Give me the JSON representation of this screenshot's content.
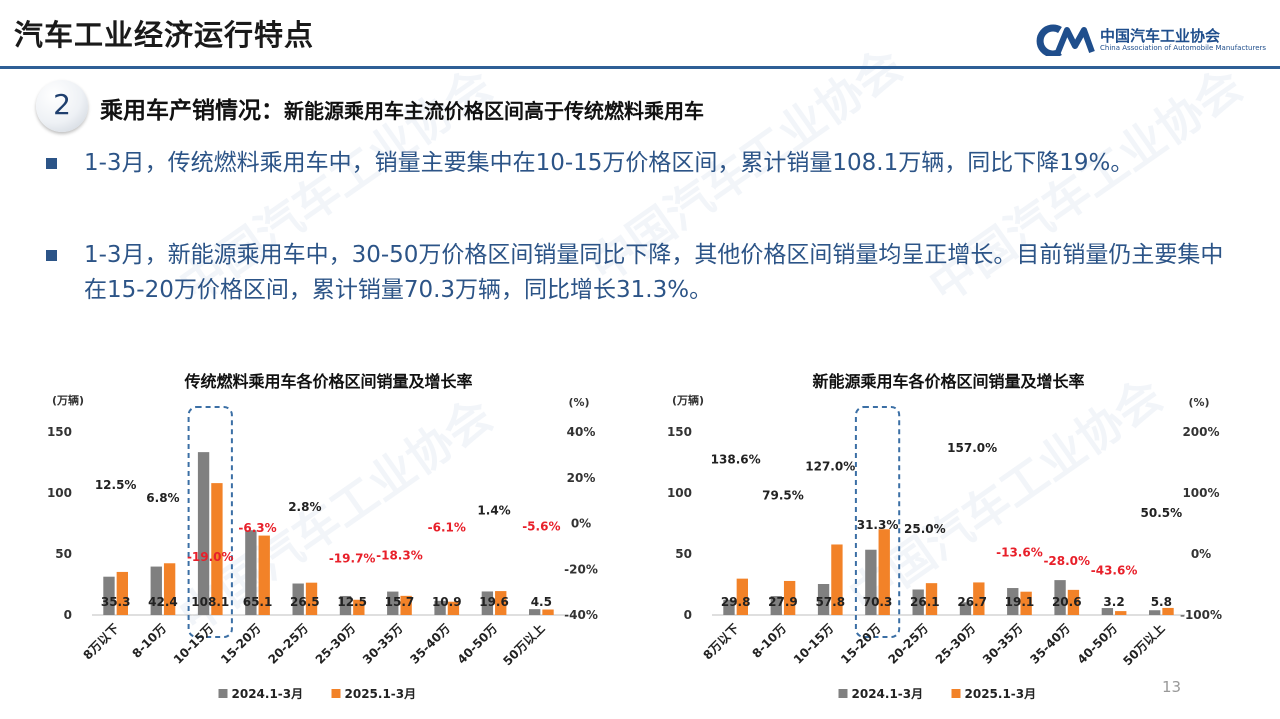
{
  "header": {
    "page_title": "汽车工业经济运行特点",
    "logo_cn": "中国汽车工业协会",
    "logo_en": "China Association of Automobile Manufacturers"
  },
  "section": {
    "number": "2",
    "title": "乘用车产销情况：",
    "subtitle": "新能源乘用车主流价格区间高于传统燃料乘用车"
  },
  "bullets": [
    "1-3月，传统燃料乘用车中，销量主要集中在10-15万价格区间，累计销量108.1万辆，同比下降19%。",
    "1-3月，新能源乘用车中，30-50万价格区间销量同比下降，其他价格区间销量均呈正增长。目前销量仍主要集中在15-20万价格区间，累计销量70.3万辆，同比增长31.3%。"
  ],
  "page_number": "13",
  "colors": {
    "accent": "#2e5f96",
    "bar_2024": "#808080",
    "bar_2025": "#f28228",
    "negative": "#e8202a",
    "highlight_box": "#3b6fa5"
  },
  "chart_data": [
    {
      "type": "bar",
      "title": "传统燃料乘用车各价格区间销量及增长率",
      "ylabel": "(万辆)",
      "y2label": "(%)",
      "categories": [
        "8万以下",
        "8-10万",
        "10-15万",
        "15-20万",
        "20-25万",
        "25-30万",
        "30-35万",
        "35-40万",
        "40-50万",
        "50万以上"
      ],
      "series": [
        {
          "name": "2024.1-3月",
          "values": [
            31.4,
            39.7,
            133.5,
            69.5,
            25.8,
            15.6,
            19.2,
            11.6,
            19.3,
            4.8
          ]
        },
        {
          "name": "2025.1-3月",
          "values": [
            35.3,
            42.4,
            108.1,
            65.1,
            26.5,
            12.5,
            15.7,
            10.9,
            19.6,
            4.5
          ]
        }
      ],
      "value_labels": [
        "35.3",
        "42.4",
        "108.1",
        "65.1",
        "26.5",
        "12.5",
        "15.7",
        "10.9",
        "19.6",
        "4.5"
      ],
      "growth_labels": [
        "12.5%",
        "6.8%",
        "-19.0%",
        "-6.3%",
        "2.8%",
        "-19.7%",
        "-18.3%",
        "-6.1%",
        "1.4%",
        "-5.6%"
      ],
      "growth_values": [
        12.5,
        6.8,
        -19.0,
        -6.3,
        2.8,
        -19.7,
        -18.3,
        -6.1,
        1.4,
        -5.6
      ],
      "ylim": [
        0,
        150
      ],
      "yticks": [
        "0",
        "50",
        "100",
        "150"
      ],
      "y2lim": [
        -40,
        40
      ],
      "y2ticks": [
        "-40%",
        "-20%",
        "0%",
        "20%",
        "40%"
      ],
      "highlight_category": 2,
      "legend_position": "bottom"
    },
    {
      "type": "bar",
      "title": "新能源乘用车各价格区间销量及增长率",
      "ylabel": "(万辆)",
      "y2label": "(%)",
      "categories": [
        "8万以下",
        "8-10万",
        "10-15万",
        "15-20万",
        "20-25万",
        "25-30万",
        "30-35万",
        "35-40万",
        "40-50万",
        "50万以上"
      ],
      "series": [
        {
          "name": "2024.1-3月",
          "values": [
            12.5,
            15.5,
            25.4,
            53.5,
            20.9,
            10.4,
            22.1,
            28.6,
            5.7,
            3.9
          ]
        },
        {
          "name": "2025.1-3月",
          "values": [
            29.8,
            27.9,
            57.8,
            70.3,
            26.1,
            26.7,
            19.1,
            20.6,
            3.2,
            5.8
          ]
        }
      ],
      "value_labels": [
        "29.8",
        "27.9",
        "57.8",
        "70.3",
        "26.1",
        "26.7",
        "19.1",
        "20.6",
        "3.2",
        "5.8"
      ],
      "growth_labels": [
        "138.6%",
        "79.5%",
        "127.0%",
        "31.3%",
        "25.0%",
        "157.0%",
        "-13.6%",
        "-28.0%",
        "-43.6%",
        "50.5%"
      ],
      "growth_values": [
        138.6,
        79.5,
        127.0,
        31.3,
        25.0,
        157.0,
        -13.6,
        -28.0,
        -43.6,
        50.5
      ],
      "ylim": [
        0,
        150
      ],
      "yticks": [
        "0",
        "50",
        "100",
        "150"
      ],
      "y2lim": [
        -100,
        200
      ],
      "y2ticks": [
        "-100%",
        "0%",
        "100%",
        "200%"
      ],
      "highlight_category": 3,
      "legend_position": "bottom"
    }
  ]
}
